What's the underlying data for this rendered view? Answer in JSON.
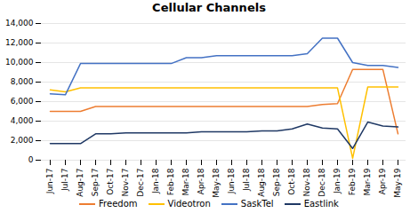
{
  "chart_data": {
    "type": "line",
    "title": "Cellular Channels",
    "categories": [
      "Jun-17",
      "Jul-17",
      "Aug-17",
      "Sep-17",
      "Oct-17",
      "Nov-17",
      "Dec-17",
      "Jan-18",
      "Feb-18",
      "Mar-18",
      "Apr-18",
      "May-18",
      "Jun-18",
      "Jul-18",
      "Aug-18",
      "Sep-18",
      "Oct-18",
      "Nov-18",
      "Dec-18",
      "Jan-19",
      "Feb-19",
      "Mar-19",
      "Apr-19",
      "May-19"
    ],
    "series": [
      {
        "name": "Freedom",
        "color": "#ED7D31",
        "values": [
          5000,
          5000,
          5000,
          5500,
          5500,
          5500,
          5500,
          5500,
          5500,
          5500,
          5500,
          5500,
          5500,
          5500,
          5500,
          5500,
          5500,
          5500,
          5700,
          5800,
          9300,
          9300,
          9300,
          2700
        ]
      },
      {
        "name": "Videotron",
        "color": "#FFC000",
        "values": [
          7200,
          7000,
          7400,
          7400,
          7400,
          7400,
          7400,
          7400,
          7400,
          7400,
          7400,
          7400,
          7400,
          7400,
          7400,
          7400,
          7400,
          7400,
          7400,
          7400,
          200,
          7500,
          7500,
          7500
        ]
      },
      {
        "name": "SaskTel",
        "color": "#4472C4",
        "values": [
          6800,
          6700,
          9900,
          9900,
          9900,
          9900,
          9900,
          9900,
          9900,
          10500,
          10500,
          10700,
          10700,
          10700,
          10700,
          10700,
          10700,
          10900,
          12500,
          12500,
          10000,
          9700,
          9700,
          9500
        ]
      },
      {
        "name": "Eastlink",
        "color": "#1F3864",
        "values": [
          1700,
          1700,
          1700,
          2700,
          2700,
          2800,
          2800,
          2800,
          2800,
          2800,
          2900,
          2900,
          2900,
          2900,
          3000,
          3000,
          3200,
          3700,
          3300,
          3200,
          1200,
          3900,
          3500,
          3400
        ]
      }
    ],
    "ylim": [
      0,
      14000
    ],
    "yticks": [
      0,
      {
        "value": 2000,
        "label": "2,000"
      },
      {
        "value": 4000,
        "label": "4,000"
      },
      {
        "value": 6000,
        "label": "6,000"
      },
      {
        "value": 8000,
        "label": "8,000"
      },
      {
        "value": 10000,
        "label": "10,000"
      },
      {
        "value": 12000,
        "label": "12,000"
      },
      {
        "value": 14000,
        "label": "14,000"
      }
    ],
    "grid": true,
    "legend": "bottom"
  }
}
